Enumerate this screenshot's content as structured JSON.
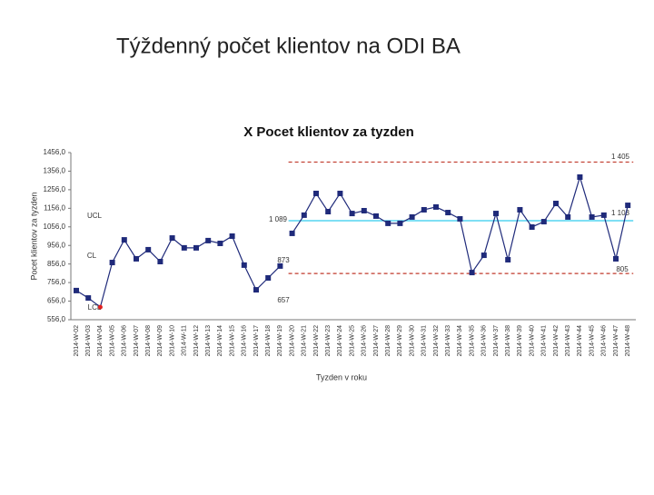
{
  "page_title": "Týždenný počet klientov na ODI BA",
  "chart_data": {
    "type": "line",
    "title": "X Pocet klientov za tyzden",
    "x_label": "Tyzden v roku",
    "y_label": "Pocet klientov za tyzden",
    "categories": [
      "2014-W-02",
      "2014-W-03",
      "2014-W-04",
      "2014-W-05",
      "2014-W-06",
      "2014-W-07",
      "2014-W-08",
      "2014-W-09",
      "2014-W-10",
      "2014-W-11",
      "2014-W-12",
      "2014-W-13",
      "2014-W-14",
      "2014-W-15",
      "2014-W-16",
      "2014-W-17",
      "2014-W-18",
      "2014-W-19",
      "2014-W-20",
      "2014-W-21",
      "2014-W-22",
      "2014-W-23",
      "2014-W-24",
      "2014-W-25",
      "2014-W-26",
      "2014-W-27",
      "2014-W-28",
      "2014-W-29",
      "2014-W-30",
      "2014-W-31",
      "2014-W-32",
      "2014-W-33",
      "2014-W-34",
      "2014-W-35",
      "2014-W-36",
      "2014-W-37",
      "2014-W-38",
      "2014-W-39",
      "2014-W-40",
      "2014-W-41",
      "2014-W-42",
      "2014-W-43",
      "2014-W-44",
      "2014-W-45",
      "2014-W-46",
      "2014-W-47",
      "2014-W-48"
    ],
    "series": [
      {
        "color": "#1f2a7a",
        "values": [
          713,
          673,
          624,
          864,
          986,
          884,
          933,
          869,
          996,
          943,
          943,
          982,
          967,
          1006,
          850,
          717,
          781,
          845,
          null,
          null,
          null,
          null,
          null,
          null,
          null,
          null,
          null,
          null,
          null,
          null,
          null,
          null,
          null,
          null,
          null,
          null,
          null,
          null,
          null,
          null,
          null,
          null,
          null,
          null,
          null,
          null,
          null
        ]
      },
      {
        "color": "#1f2a7a",
        "values": [
          null,
          null,
          null,
          null,
          null,
          null,
          null,
          null,
          null,
          null,
          null,
          null,
          null,
          null,
          null,
          null,
          null,
          null,
          1021,
          1119,
          1236,
          1138,
          1236,
          1128,
          1143,
          1114,
          1075,
          1075,
          1109,
          1148,
          1163,
          1133,
          1099,
          810,
          903,
          1128,
          879,
          1148,
          1055,
          1084,
          1182,
          1109,
          1324,
          1109,
          1119,
          884,
          1172
        ]
      }
    ],
    "highlight_point": {
      "series": 0,
      "index": 2,
      "color": "#e02020"
    },
    "limits": [
      {
        "label": "1 405",
        "value": 1405,
        "color": "#c0392b",
        "dashed": true
      },
      {
        "label": "1 089",
        "value": 1089,
        "color": "#33ccee",
        "dashed": false
      },
      {
        "label": "805",
        "value": 805,
        "color": "#c0392b",
        "dashed": true
      }
    ],
    "annotations": [
      "1 103",
      "873",
      "657",
      "UCL",
      "CL",
      "LCL"
    ],
    "ylim": [
      556,
      1456
    ],
    "yticks": [
      {
        "value": 556,
        "label": "556,0"
      },
      {
        "value": 656,
        "label": "656,0"
      },
      {
        "value": 756,
        "label": "756,0"
      },
      {
        "value": 856,
        "label": "856,0"
      },
      {
        "value": 956,
        "label": "956,0"
      },
      {
        "value": 1056,
        "label": "1056,0"
      },
      {
        "value": 1156,
        "label": "1156,0"
      },
      {
        "value": 1256,
        "label": "1256,0"
      },
      {
        "value": 1356,
        "label": "1356,0"
      },
      {
        "value": 1456,
        "label": "1456,0"
      }
    ]
  }
}
